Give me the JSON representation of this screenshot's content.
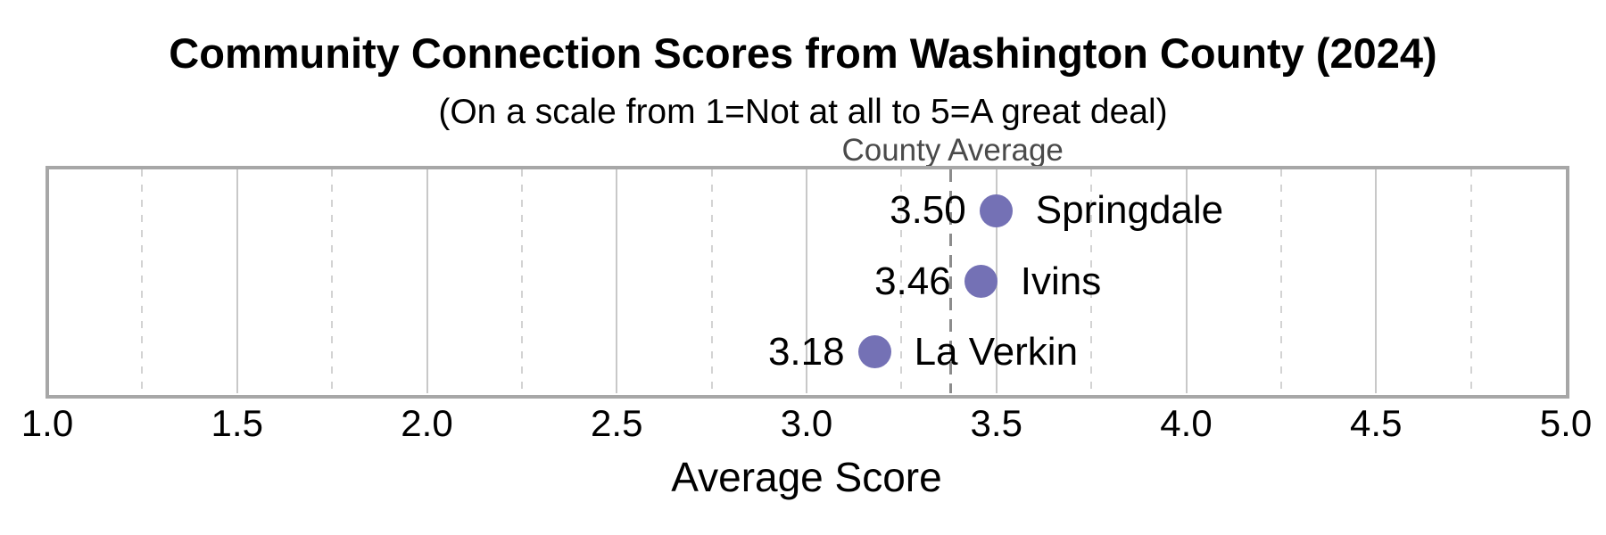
{
  "chart_data": {
    "type": "scatter",
    "title": "Community Connection Scores from Washington County (2024)",
    "subtitle": "(On a scale from 1=Not at all to 5=A great deal)",
    "xlabel": "Average Score",
    "xlim": [
      1.0,
      5.0
    ],
    "grid": true,
    "legend": false,
    "x_ticks": [
      {
        "value": 1.0,
        "label": "1.0"
      },
      {
        "value": 1.5,
        "label": "1.5"
      },
      {
        "value": 2.0,
        "label": "2.0"
      },
      {
        "value": 2.5,
        "label": "2.5"
      },
      {
        "value": 3.0,
        "label": "3.0"
      },
      {
        "value": 3.5,
        "label": "3.5"
      },
      {
        "value": 4.0,
        "label": "4.0"
      },
      {
        "value": 4.5,
        "label": "4.5"
      },
      {
        "value": 5.0,
        "label": "5.0"
      }
    ],
    "major_gridlines": [
      1.5,
      2.0,
      2.5,
      3.0,
      3.5,
      4.0,
      4.5
    ],
    "minor_gridlines": [
      1.25,
      1.75,
      2.25,
      2.75,
      3.25,
      3.75,
      4.25,
      4.75
    ],
    "reference_line": {
      "label": "County Average",
      "value": 3.38
    },
    "points": [
      {
        "name": "Springdale",
        "value": 3.5,
        "value_label": "3.50"
      },
      {
        "name": "Ivins",
        "value": 3.46,
        "value_label": "3.46"
      },
      {
        "name": "La Verkin",
        "value": 3.18,
        "value_label": "3.18"
      }
    ]
  },
  "colors": {
    "dot": "#7471b5",
    "reference_line": "#8c8c8c",
    "reference_label": "#4a4a4a",
    "grid_major": "#c8c8c8",
    "grid_minor": "#d3d3d3",
    "plot_border": "#a7a7a7",
    "text": "#000000",
    "background": "#ffffff"
  }
}
